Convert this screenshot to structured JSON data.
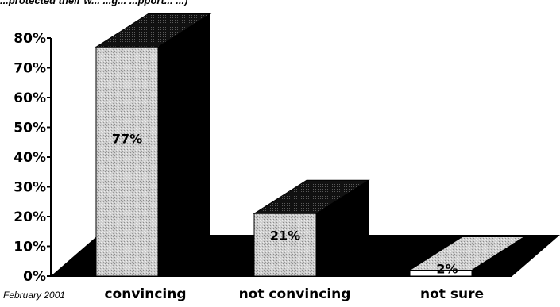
{
  "chart_title": "...protected their w... ...g... ...pport... ...)",
  "footnote": "February 2001",
  "chart_data": {
    "type": "bar",
    "categories": [
      "convincing",
      "not convincing",
      "not sure"
    ],
    "values": [
      77,
      21,
      2
    ],
    "data_labels": [
      "77%",
      "21%",
      "2%"
    ],
    "yticks": [
      "0%",
      "10%",
      "20%",
      "30%",
      "40%",
      "50%",
      "60%",
      "70%",
      "80%"
    ],
    "ylim": [
      0,
      80
    ],
    "title": "",
    "xlabel": "",
    "ylabel": "",
    "grid": false,
    "style": "3d-perspective",
    "colors": {
      "bar_face": "#c8c8c8",
      "bar_side": "#000000",
      "floor": "#000000",
      "background": "#ffffff"
    }
  }
}
